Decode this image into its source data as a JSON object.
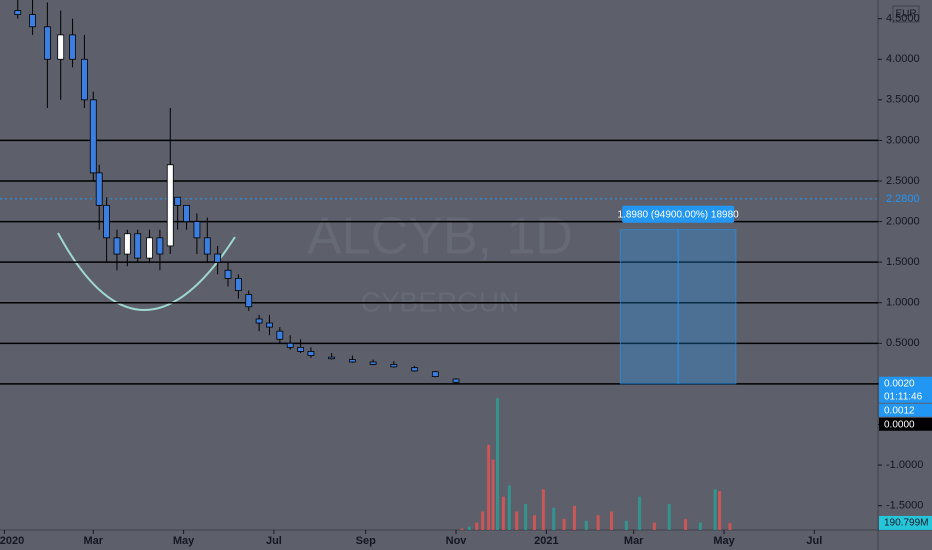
{
  "chart_data": {
    "type": "candlestick",
    "symbol_watermark": "ALCYB, 1D",
    "name_watermark": "CYBERGUN",
    "currency": "EUR",
    "xlim": [
      "2019-12-29",
      "2021-08-13"
    ],
    "xticks": [
      {
        "value": "2020-01-01",
        "label": "2020"
      },
      {
        "value": "2020-03-01",
        "label": "Mar"
      },
      {
        "value": "2020-05-01",
        "label": "May"
      },
      {
        "value": "2020-07-01",
        "label": "Jul"
      },
      {
        "value": "2020-09-01",
        "label": "Sep"
      },
      {
        "value": "2020-11-01",
        "label": "Nov"
      },
      {
        "value": "2021-01-01",
        "label": "2021"
      },
      {
        "value": "2021-03-01",
        "label": "Mar"
      },
      {
        "value": "2021-05-01",
        "label": "May"
      },
      {
        "value": "2021-07-01",
        "label": "Jul"
      }
    ],
    "ylim": [
      -1.8,
      4.73
    ],
    "yticks": [
      {
        "value": 4.5,
        "label": "4.5000"
      },
      {
        "value": 4,
        "label": "4.0000"
      },
      {
        "value": 3.5,
        "label": "3.5000"
      },
      {
        "value": 3,
        "label": "3.0000"
      },
      {
        "value": 2.5,
        "label": "2.5000"
      },
      {
        "value": 2,
        "label": "2.0000"
      },
      {
        "value": 1.5,
        "label": "1.5000"
      },
      {
        "value": 1,
        "label": "1.0000"
      },
      {
        "value": 0.5,
        "label": "0.5000"
      },
      {
        "value": 0,
        "label": "0.0000"
      },
      {
        "value": -0.5,
        "label": "-0.5000"
      },
      {
        "value": -1,
        "label": "-1.0000"
      },
      {
        "value": -1.5,
        "label": "-1.5000"
      }
    ],
    "up_color": "#ffffff",
    "down_color": "#3d7fe0",
    "candles": {
      "x": [
        "2020-01-10",
        "2020-01-20",
        "2020-01-30",
        "2020-02-08",
        "2020-02-16",
        "2020-02-24",
        "2020-03-01",
        "2020-03-05",
        "2020-03-10",
        "2020-03-17",
        "2020-03-24",
        "2020-03-31",
        "2020-04-08",
        "2020-04-15",
        "2020-04-22",
        "2020-04-27",
        "2020-05-03",
        "2020-05-10",
        "2020-05-17",
        "2020-05-24",
        "2020-05-31",
        "2020-06-07",
        "2020-06-14",
        "2020-06-21",
        "2020-06-28",
        "2020-07-05",
        "2020-07-12",
        "2020-07-19",
        "2020-07-26",
        "2020-08-09",
        "2020-08-23",
        "2020-09-06",
        "2020-09-20",
        "2020-10-04",
        "2020-10-18",
        "2020-11-01"
      ],
      "open": [
        4.6,
        4.55,
        4.4,
        4.0,
        4.3,
        4.0,
        3.5,
        2.6,
        2.2,
        1.8,
        1.6,
        1.85,
        1.55,
        1.8,
        1.7,
        2.3,
        2.2,
        2.0,
        1.8,
        1.6,
        1.4,
        1.3,
        1.1,
        0.8,
        0.75,
        0.65,
        0.5,
        0.45,
        0.4,
        0.33,
        0.3,
        0.27,
        0.24,
        0.2,
        0.15,
        0.06
      ],
      "high": [
        4.75,
        4.75,
        4.7,
        4.6,
        4.5,
        4.3,
        3.6,
        2.7,
        2.3,
        1.9,
        1.9,
        1.9,
        1.9,
        1.9,
        3.4,
        2.3,
        2.2,
        2.1,
        2.05,
        1.7,
        1.5,
        1.35,
        1.15,
        0.85,
        0.85,
        0.7,
        0.6,
        0.55,
        0.45,
        0.38,
        0.35,
        0.3,
        0.28,
        0.22,
        0.16,
        0.07
      ],
      "low": [
        4.5,
        4.3,
        3.4,
        3.5,
        3.9,
        3.4,
        2.5,
        1.9,
        1.5,
        1.4,
        1.45,
        1.5,
        1.5,
        1.4,
        1.6,
        1.9,
        1.9,
        1.6,
        1.5,
        1.35,
        1.2,
        1.05,
        0.9,
        0.65,
        0.6,
        0.5,
        0.42,
        0.38,
        0.32,
        0.3,
        0.26,
        0.23,
        0.2,
        0.15,
        0.08,
        0.01
      ],
      "close": [
        4.55,
        4.4,
        4.0,
        4.3,
        4.0,
        3.5,
        2.6,
        2.2,
        1.8,
        1.6,
        1.85,
        1.55,
        1.8,
        1.6,
        2.7,
        2.2,
        2.0,
        1.8,
        1.6,
        1.5,
        1.3,
        1.15,
        0.95,
        0.75,
        0.7,
        0.55,
        0.45,
        0.4,
        0.35,
        0.31,
        0.27,
        0.24,
        0.21,
        0.16,
        0.09,
        0.02
      ]
    },
    "levels": [
      3,
      2.5,
      2,
      1.5,
      1,
      0.5,
      0
    ],
    "level_color": "#000000",
    "marker_line": {
      "value": 2.28,
      "label": "2.2800",
      "color": "#2196f3"
    },
    "price_badges": [
      {
        "value": 0.002,
        "label": "0.0020",
        "countdown": "01:11:46",
        "color": "#2196f3"
      },
      {
        "value": 0.0012,
        "label": "0.0012",
        "color": "#2196f3"
      },
      {
        "value": 0,
        "label": "0.0000",
        "color": "#000000"
      }
    ],
    "measure": {
      "x": [
        "2021-02-20",
        "2021-05-09"
      ],
      "from": 0.002,
      "to": 1.9,
      "label": "1.8980 (94900.00%) 18980",
      "color": "#2196f3"
    },
    "volume": {
      "x": [
        "2020-11-05",
        "2020-11-10",
        "2020-11-15",
        "2020-11-19",
        "2020-11-23",
        "2020-11-26",
        "2020-11-29",
        "2020-12-03",
        "2020-12-07",
        "2020-12-12",
        "2020-12-18",
        "2020-12-24",
        "2020-12-30",
        "2021-01-06",
        "2021-01-13",
        "2021-01-20",
        "2021-01-28",
        "2021-02-05",
        "2021-02-14",
        "2021-02-24",
        "2021-03-05",
        "2021-03-15",
        "2021-03-25",
        "2021-04-05",
        "2021-04-15",
        "2021-04-25",
        "2021-04-28",
        "2021-05-05"
      ],
      "values": [
        40,
        90,
        200,
        500,
        2300,
        1900,
        3560,
        900,
        1200,
        500,
        700,
        400,
        1100,
        600,
        300,
        650,
        250,
        400,
        500,
        250,
        900,
        200,
        700,
        300,
        200,
        1100,
        1050,
        190.799
      ],
      "colors": [
        "#ef5350",
        "#26a69a",
        "#ef5350",
        "#ef5350",
        "#ef5350",
        "#ef5350",
        "#26a69a",
        "#ef5350",
        "#26a69a",
        "#ef5350",
        "#26a69a",
        "#ef5350",
        "#ef5350",
        "#26a69a",
        "#ef5350",
        "#ef5350",
        "#26a69a",
        "#ef5350",
        "#ef5350",
        "#26a69a",
        "#26a69a",
        "#ef5350",
        "#26a69a",
        "#ef5350",
        "#26a69a",
        "#26a69a",
        "#ef5350",
        "#ef5350"
      ],
      "last_label": "190.799M",
      "label_color": "#26c6da"
    }
  }
}
